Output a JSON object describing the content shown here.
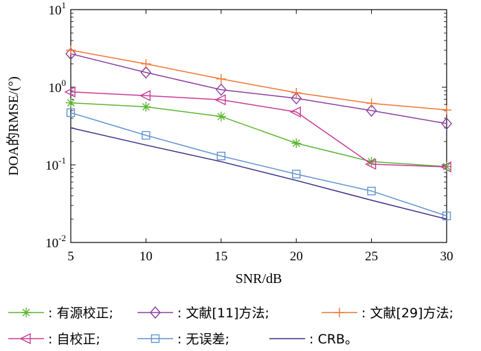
{
  "chart_data": {
    "type": "line",
    "xlabel": "SNR/dB",
    "ylabel": "DOA的RMSE/(°)",
    "x": [
      5,
      10,
      15,
      20,
      25,
      30
    ],
    "xlim": [
      5,
      30
    ],
    "ylim": [
      0.01,
      10
    ],
    "yscale": "log",
    "grid": false,
    "legend_position": "bottom",
    "x_ticks": [
      "5",
      "10",
      "15",
      "20",
      "25",
      "30"
    ],
    "y_ticks": [
      {
        "base": "10",
        "exp": "-2",
        "value": 0.01
      },
      {
        "base": "10",
        "exp": "-1",
        "value": 0.1
      },
      {
        "base": "10",
        "exp": "0",
        "value": 1
      },
      {
        "base": "10",
        "exp": "1",
        "value": 10
      }
    ],
    "series": [
      {
        "name": ": 有源校正;",
        "color": "#5cb531",
        "marker": "star",
        "values": [
          0.63,
          0.56,
          0.42,
          0.19,
          0.11,
          0.095
        ]
      },
      {
        "name": ": 文献[11]方法;",
        "color": "#8b40a0",
        "marker": "diamond",
        "values": [
          2.7,
          1.55,
          0.93,
          0.72,
          0.5,
          0.34
        ]
      },
      {
        "name": ": 文献[29]方法;",
        "color": "#f27430",
        "marker": "plus",
        "values": [
          3.0,
          2.0,
          1.28,
          0.85,
          0.62,
          0.51
        ]
      },
      {
        "name": ": 自校正;",
        "color": "#c93a96",
        "marker": "triangle-left",
        "values": [
          0.87,
          0.78,
          0.69,
          0.48,
          0.102,
          0.094
        ]
      },
      {
        "name": ": 无误差;",
        "color": "#6194d1",
        "marker": "square",
        "values": [
          0.47,
          0.24,
          0.13,
          0.076,
          0.046,
          0.022
        ]
      },
      {
        "name": ": CRB。",
        "color": "#3a3087",
        "marker": "none",
        "values": [
          0.3,
          0.18,
          0.11,
          0.063,
          0.035,
          0.02
        ]
      }
    ]
  }
}
